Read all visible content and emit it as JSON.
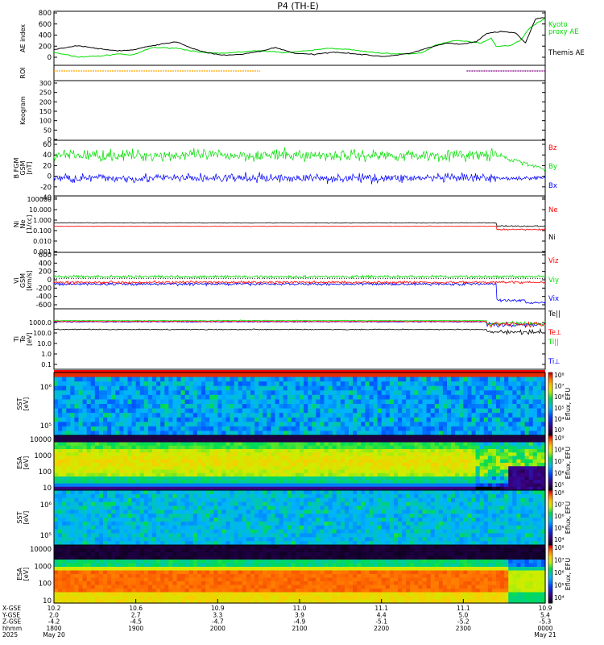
{
  "title": "P4 (TH-E)",
  "colors": {
    "black": "#000000",
    "green": "#00dd00",
    "blue": "#0000ff",
    "red": "#ff0000",
    "orange": "#ffa500",
    "purple": "#800080"
  },
  "chart_data": [
    {
      "type": "line",
      "panel": "ae",
      "ylabel": "AE index",
      "ylim": [
        -50,
        800
      ],
      "yticks": [
        "0",
        "200",
        "400",
        "600",
        "800"
      ],
      "series": [
        {
          "name": "Kyoto proxy AE",
          "color": "#00dd00",
          "x": [
            0.0,
            0.05,
            0.1,
            0.13,
            0.16,
            0.2,
            0.25,
            0.3,
            0.34,
            0.38,
            0.42,
            0.47,
            0.52,
            0.56,
            0.6,
            0.64,
            0.67,
            0.7,
            0.73,
            0.75,
            0.78,
            0.82,
            0.85,
            0.87,
            0.89,
            0.9,
            0.93,
            0.95,
            0.97,
            1.0
          ],
          "values": [
            150,
            80,
            100,
            130,
            110,
            230,
            220,
            150,
            140,
            160,
            180,
            150,
            180,
            220,
            200,
            160,
            140,
            130,
            130,
            150,
            280,
            340,
            320,
            300,
            380,
            250,
            260,
            350,
            550,
            690
          ]
        },
        {
          "name": "Themis AE",
          "color": "#000000",
          "x": [
            0.0,
            0.05,
            0.1,
            0.13,
            0.16,
            0.2,
            0.25,
            0.28,
            0.31,
            0.34,
            0.38,
            0.42,
            0.45,
            0.49,
            0.53,
            0.57,
            0.6,
            0.64,
            0.67,
            0.7,
            0.73,
            0.76,
            0.8,
            0.83,
            0.86,
            0.88,
            0.91,
            0.94,
            0.96,
            0.98,
            1.0
          ],
          "values": [
            200,
            260,
            200,
            180,
            190,
            260,
            320,
            220,
            150,
            110,
            120,
            170,
            230,
            140,
            120,
            160,
            140,
            110,
            90,
            110,
            150,
            220,
            300,
            280,
            320,
            450,
            480,
            460,
            300,
            680,
            700
          ]
        }
      ],
      "legend": [
        "Kyoto",
        "proxy AE",
        "Themis AE"
      ]
    },
    {
      "type": "line",
      "panel": "roi",
      "ylabel": "ROI",
      "segments": [
        {
          "color": "#ffa500",
          "from": 0.0,
          "to": 0.42
        },
        {
          "color": "#800080",
          "from": 0.84,
          "to": 1.0
        }
      ]
    },
    {
      "type": "heatmap",
      "panel": "keogram",
      "ylabel": "Keogram",
      "ylim": [
        0,
        300
      ],
      "yticks": [
        "0",
        "50",
        "100",
        "150",
        "200",
        "250",
        "300"
      ]
    },
    {
      "type": "line",
      "panel": "bfgm",
      "ylabel": [
        "B FGM",
        "GSM",
        "[nT]"
      ],
      "ylim": [
        -40,
        60
      ],
      "yticks": [
        "-40",
        "-20",
        "0",
        "20",
        "40",
        "60"
      ],
      "series": [
        {
          "name": "Bz",
          "color": "#ff0000",
          "base": 30,
          "noise": 7
        },
        {
          "name": "By",
          "color": "#00dd00",
          "base": 33,
          "noise": 9
        },
        {
          "name": "Bx",
          "color": "#0000ff",
          "base": -8,
          "noise": 7
        }
      ]
    },
    {
      "type": "line",
      "panel": "density",
      "scale": "log",
      "ylabel": [
        "Ni",
        "Ne",
        "[1/cc]"
      ],
      "ylim": [
        0.001,
        100000
      ],
      "yticks": [
        "0.001",
        "0.010",
        "0.100",
        "1.000",
        "10.000",
        "100000"
      ],
      "series": [
        {
          "name": "Ne",
          "color": "#ff0000",
          "base": 5
        },
        {
          "name": "Ni",
          "color": "#000000",
          "base": 15
        }
      ]
    },
    {
      "type": "line",
      "panel": "velocity",
      "ylabel": [
        "Vi",
        "GSM",
        "[km/s]"
      ],
      "ylim": [
        -700,
        600
      ],
      "yticks": [
        "-600",
        "-400",
        "-200",
        "0",
        "200",
        "400",
        "600"
      ],
      "series": [
        {
          "name": "Viz",
          "color": "#ff0000",
          "base": -90
        },
        {
          "name": "Viy",
          "color": "#00dd00",
          "base": 40
        },
        {
          "name": "Vix",
          "color": "#0000ff",
          "base": -130
        }
      ]
    },
    {
      "type": "line",
      "panel": "temperature",
      "scale": "log",
      "ylabel": [
        "Ti",
        "Te",
        "[eV]"
      ],
      "ylim": [
        0.05,
        3000
      ],
      "yticks": [
        "0.1",
        "1.0",
        "10.0",
        "100.0",
        "1000.0"
      ],
      "series": [
        {
          "name": "Te||",
          "color": "#000000",
          "base": 70
        },
        {
          "name": "Te⊥",
          "color": "#ff0000",
          "base": 300
        },
        {
          "name": "Ti||",
          "color": "#00dd00",
          "base": 350
        },
        {
          "name": "Ti⊥",
          "color": "#0000ff",
          "base": 280
        }
      ]
    },
    {
      "type": "heatmap",
      "panel": "sst-e",
      "ylabel": [
        "SST",
        "[eV]"
      ],
      "yticks": [
        "10⁵",
        "10⁶"
      ],
      "colorbar": {
        "label": "Eflux, EFU",
        "ticks": [
          "10⁸",
          "10⁷",
          "10⁶",
          "10⁵",
          "10⁴",
          "10³"
        ]
      }
    },
    {
      "type": "heatmap",
      "panel": "esa-e",
      "ylabel": [
        "ESA",
        "[eV]"
      ],
      "yticks": [
        "10",
        "100",
        "1000",
        "10000"
      ],
      "colorbar": {
        "label": "Eflux, EFU",
        "ticks": [
          "10⁹",
          "10⁸",
          "10⁷",
          "10⁶",
          "10⁵"
        ]
      }
    },
    {
      "type": "heatmap",
      "panel": "sst-i",
      "ylabel": [
        "SST",
        "[eV]"
      ],
      "yticks": [
        "10⁵",
        "10⁶"
      ],
      "colorbar": {
        "label": "Eflux, EFU",
        "ticks": [
          "10⁸",
          "10⁷",
          "10⁶",
          "10⁵",
          "10⁴"
        ]
      }
    },
    {
      "type": "heatmap",
      "panel": "esa-i",
      "ylabel": [
        "ESA",
        "[eV]"
      ],
      "yticks": [
        "10",
        "100",
        "1000",
        "10000"
      ],
      "colorbar": {
        "label": "Eflux, EFU",
        "ticks": [
          "10⁸",
          "10⁷",
          "10⁶",
          "10⁵",
          "10⁴"
        ]
      }
    }
  ],
  "xaxis": {
    "row_labels": [
      "X-GSE",
      "Y-GSE",
      "Z-GSE",
      "hhmm",
      "2025"
    ],
    "ticks": [
      {
        "v": [
          "10.2",
          "2.0",
          "-4.2",
          "1800",
          "May 20"
        ]
      },
      {
        "v": [
          "10.6",
          "2.7",
          "-4.5",
          "1900",
          ""
        ]
      },
      {
        "v": [
          "10.9",
          "3.3",
          "-4.7",
          "2000",
          ""
        ]
      },
      {
        "v": [
          "11.0",
          "3.9",
          "-4.9",
          "2100",
          ""
        ]
      },
      {
        "v": [
          "11.1",
          "4.4",
          "-5.1",
          "2200",
          ""
        ]
      },
      {
        "v": [
          "11.1",
          "5.0",
          "-5.2",
          "2300",
          ""
        ]
      },
      {
        "v": [
          "10.9",
          "5.4",
          "-5.3",
          "0000",
          "May 21"
        ]
      }
    ]
  }
}
